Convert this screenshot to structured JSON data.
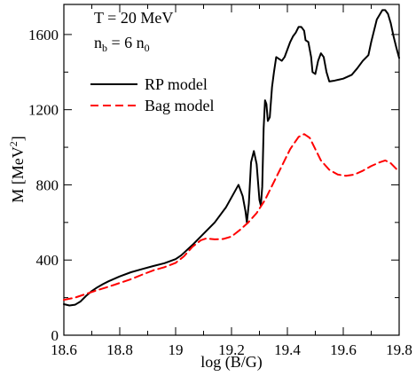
{
  "chart_data": {
    "type": "line",
    "xlabel": "log (B/G)",
    "ylabel": {
      "main": "M [MeV",
      "sup": "2",
      "end": "]"
    },
    "xlim": [
      18.6,
      19.8
    ],
    "ylim": [
      0,
      1760
    ],
    "xticks": [
      18.6,
      18.8,
      19.0,
      19.2,
      19.4,
      19.6,
      19.8
    ],
    "xtick_labels": [
      "18.6",
      "18.8",
      "19",
      "19.2",
      "19.4",
      "19.6",
      "19.8"
    ],
    "yticks": [
      0,
      400,
      800,
      1200,
      1600
    ],
    "ytick_labels": [
      "0",
      "400",
      "800",
      "1200",
      "1600"
    ],
    "annotations": {
      "temperature": "T = 20 MeV",
      "density": {
        "n": "n",
        "n_sub": "b",
        "eq": " = 6 n",
        "n0_sub": "0"
      }
    },
    "legend_position": "upper-left",
    "series": [
      {
        "name": "RP model",
        "color": "#000000",
        "style": "solid",
        "points": [
          [
            18.6,
            165
          ],
          [
            18.62,
            158
          ],
          [
            18.64,
            162
          ],
          [
            18.66,
            180
          ],
          [
            18.68,
            210
          ],
          [
            18.7,
            235
          ],
          [
            18.72,
            255
          ],
          [
            18.74,
            272
          ],
          [
            18.76,
            287
          ],
          [
            18.78,
            300
          ],
          [
            18.8,
            313
          ],
          [
            18.84,
            335
          ],
          [
            18.88,
            352
          ],
          [
            18.92,
            368
          ],
          [
            18.96,
            383
          ],
          [
            19.0,
            405
          ],
          [
            19.02,
            425
          ],
          [
            19.06,
            480
          ],
          [
            19.1,
            540
          ],
          [
            19.14,
            600
          ],
          [
            19.18,
            680
          ],
          [
            19.21,
            760
          ],
          [
            19.225,
            800
          ],
          [
            19.24,
            740
          ],
          [
            19.25,
            660
          ],
          [
            19.255,
            600
          ],
          [
            19.262,
            700
          ],
          [
            19.27,
            920
          ],
          [
            19.28,
            980
          ],
          [
            19.29,
            910
          ],
          [
            19.3,
            720
          ],
          [
            19.305,
            690
          ],
          [
            19.31,
            790
          ],
          [
            19.315,
            1100
          ],
          [
            19.32,
            1250
          ],
          [
            19.325,
            1230
          ],
          [
            19.33,
            1140
          ],
          [
            19.337,
            1160
          ],
          [
            19.345,
            1320
          ],
          [
            19.352,
            1400
          ],
          [
            19.36,
            1480
          ],
          [
            19.37,
            1470
          ],
          [
            19.38,
            1460
          ],
          [
            19.39,
            1480
          ],
          [
            19.4,
            1520
          ],
          [
            19.41,
            1560
          ],
          [
            19.42,
            1590
          ],
          [
            19.43,
            1610
          ],
          [
            19.44,
            1640
          ],
          [
            19.45,
            1640
          ],
          [
            19.46,
            1620
          ],
          [
            19.465,
            1570
          ],
          [
            19.475,
            1560
          ],
          [
            19.485,
            1480
          ],
          [
            19.49,
            1400
          ],
          [
            19.5,
            1390
          ],
          [
            19.51,
            1460
          ],
          [
            19.52,
            1500
          ],
          [
            19.53,
            1480
          ],
          [
            19.54,
            1400
          ],
          [
            19.55,
            1350
          ],
          [
            19.57,
            1355
          ],
          [
            19.6,
            1365
          ],
          [
            19.63,
            1385
          ],
          [
            19.65,
            1420
          ],
          [
            19.67,
            1460
          ],
          [
            19.69,
            1490
          ],
          [
            19.7,
            1560
          ],
          [
            19.72,
            1680
          ],
          [
            19.74,
            1730
          ],
          [
            19.75,
            1730
          ],
          [
            19.76,
            1710
          ],
          [
            19.77,
            1660
          ],
          [
            19.78,
            1590
          ],
          [
            19.79,
            1530
          ],
          [
            19.8,
            1475
          ]
        ]
      },
      {
        "name": "Bag model",
        "color": "#ff0000",
        "style": "dashed",
        "points": [
          [
            18.6,
            188
          ],
          [
            18.64,
            200
          ],
          [
            18.68,
            220
          ],
          [
            18.72,
            240
          ],
          [
            18.76,
            258
          ],
          [
            18.8,
            278
          ],
          [
            18.84,
            298
          ],
          [
            18.88,
            322
          ],
          [
            18.92,
            345
          ],
          [
            18.96,
            362
          ],
          [
            19.0,
            385
          ],
          [
            19.03,
            420
          ],
          [
            19.06,
            470
          ],
          [
            19.09,
            505
          ],
          [
            19.11,
            515
          ],
          [
            19.14,
            510
          ],
          [
            19.17,
            512
          ],
          [
            19.2,
            525
          ],
          [
            19.23,
            560
          ],
          [
            19.26,
            600
          ],
          [
            19.29,
            650
          ],
          [
            19.32,
            720
          ],
          [
            19.35,
            810
          ],
          [
            19.38,
            900
          ],
          [
            19.41,
            990
          ],
          [
            19.44,
            1055
          ],
          [
            19.46,
            1070
          ],
          [
            19.48,
            1050
          ],
          [
            19.5,
            990
          ],
          [
            19.52,
            930
          ],
          [
            19.55,
            880
          ],
          [
            19.58,
            855
          ],
          [
            19.61,
            848
          ],
          [
            19.64,
            855
          ],
          [
            19.67,
            875
          ],
          [
            19.7,
            900
          ],
          [
            19.73,
            920
          ],
          [
            19.75,
            930
          ],
          [
            19.77,
            915
          ],
          [
            19.8,
            870
          ]
        ]
      }
    ]
  }
}
